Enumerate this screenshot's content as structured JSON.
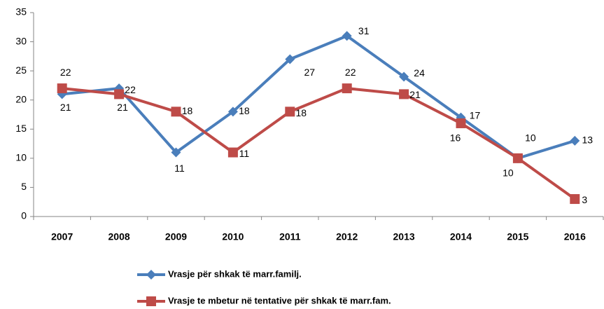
{
  "chart_data": {
    "type": "line",
    "categories": [
      "2007",
      "2008",
      "2009",
      "2010",
      "2011",
      "2012",
      "2013",
      "2014",
      "2015",
      "2016"
    ],
    "series": [
      {
        "name": "Vrasje për shkak të marr.familj.",
        "color": "#4a7ebb",
        "marker": "diamond",
        "values": [
          21,
          22,
          11,
          18,
          27,
          31,
          24,
          17,
          10,
          13
        ]
      },
      {
        "name": "Vrasje te mbetur në tentative për shkak të marr.fam.",
        "color": "#be4b48",
        "marker": "square",
        "values": [
          22,
          21,
          18,
          11,
          18,
          22,
          21,
          16,
          10,
          3
        ]
      }
    ],
    "ylim": [
      0,
      35
    ],
    "yticks": [
      0,
      5,
      10,
      15,
      20,
      25,
      30,
      35
    ],
    "grid": false,
    "legend": "bottom"
  }
}
